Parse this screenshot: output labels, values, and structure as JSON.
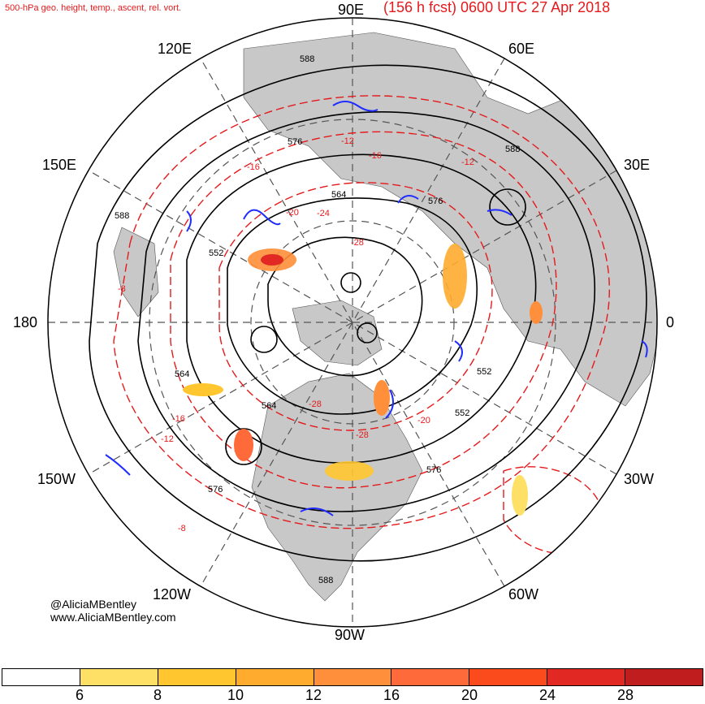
{
  "header": {
    "product": "500-hPa geo. height, temp., ascent, rel. vort.",
    "run": "(156 h fcst) 0600 UTC 27 Apr 2018"
  },
  "longitude_labels": {
    "n": "90E",
    "ne": "60E",
    "ene": "30E",
    "e": "0",
    "se": "30W",
    "sse": "60W",
    "s": "90W",
    "ssw": "120W",
    "sw": "150W",
    "w": "180",
    "wnw": "150E",
    "nw": "120E"
  },
  "contour_labels": {
    "heights": [
      "588",
      "576",
      "564",
      "552",
      "576",
      "588",
      "564",
      "552",
      "564",
      "552",
      "576",
      "564",
      "576",
      "588",
      "588"
    ],
    "temperatures": [
      "-12",
      "-16",
      "-12",
      "-16",
      "-8",
      "-20",
      "-24",
      "-28",
      "-28",
      "-20",
      "-16",
      "-12",
      "-8",
      "-28"
    ]
  },
  "credit": {
    "handle": "@AliciaMBentley",
    "site": "www.AliciaMBentley.com"
  },
  "legend": {
    "colors": [
      "#ffffff",
      "#ffe066",
      "#ffc62f",
      "#ffab2e",
      "#ff8f3a",
      "#ff6a3a",
      "#fb4b1d",
      "#e22823",
      "#c01e1e"
    ],
    "labels": [
      "6",
      "8",
      "10",
      "12",
      "16",
      "20",
      "24",
      "28"
    ]
  },
  "colors": {
    "title": "#e41a1c",
    "land": "#c8c8c8",
    "height_contour": "#000000",
    "temp_contour": "#e41a1c",
    "ascent": "#1f2dff"
  }
}
